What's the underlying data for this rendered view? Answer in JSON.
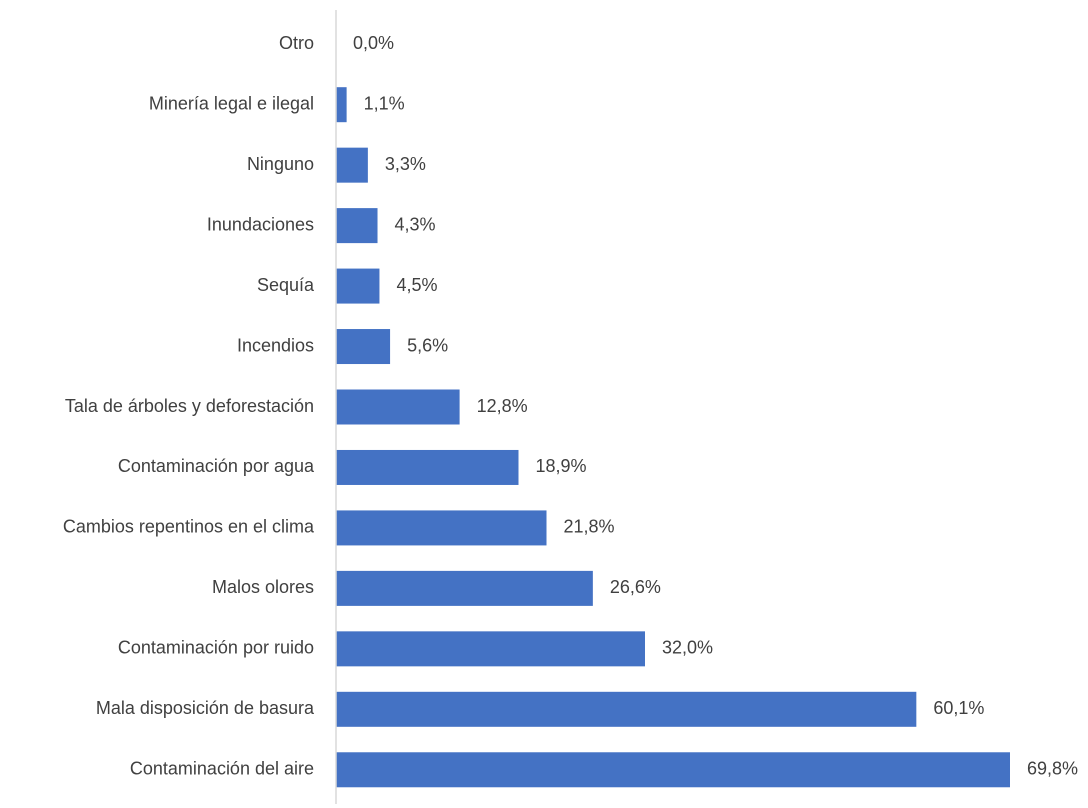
{
  "chart_data": {
    "type": "bar",
    "orientation": "horizontal",
    "categories": [
      "Otro",
      "Minería legal e ilegal",
      "Ninguno",
      "Inundaciones",
      "Sequía",
      "Incendios",
      "Tala de árboles y deforestación",
      "Contaminación por agua",
      "Cambios repentinos en el clima",
      "Malos olores",
      "Contaminación por ruido",
      "Mala disposición de basura",
      "Contaminación del aire"
    ],
    "values": [
      0.0,
      1.1,
      3.3,
      4.3,
      4.5,
      5.6,
      12.8,
      18.9,
      21.8,
      26.6,
      32.0,
      60.1,
      69.8
    ],
    "value_labels": [
      "0,0%",
      "1,1%",
      "3,3%",
      "4,3%",
      "4,5%",
      "5,6%",
      "12,8%",
      "18,9%",
      "21,8%",
      "26,6%",
      "32,0%",
      "60,1%",
      "69,8%"
    ],
    "title": "",
    "xlabel": "",
    "ylabel": "",
    "xlim": [
      0,
      70
    ],
    "grid": false,
    "legend": "none",
    "bar_color": "#4472C4",
    "axis_color": "#D9D9D9",
    "text_color": "#404040"
  }
}
